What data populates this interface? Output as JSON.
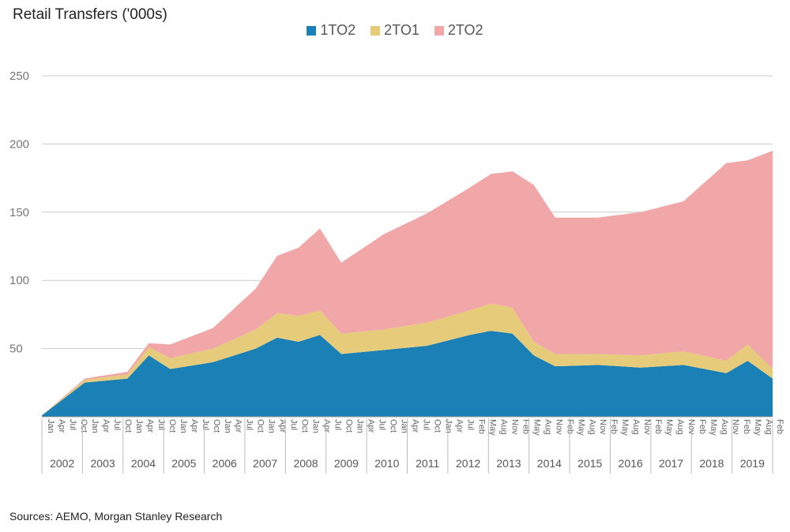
{
  "colors": {
    "s1": "#1a80b6",
    "s2": "#e6cb7a",
    "s3": "#f1a6a8",
    "grid": "#cccccc",
    "axis": "#999999"
  },
  "chart_data": {
    "type": "area",
    "stacked": true,
    "title": "Retail Transfers ('000s)",
    "source": "Sources: AEMO, Morgan Stanley Research",
    "ylim": [
      0,
      250
    ],
    "yticks": [
      "50",
      "100",
      "150",
      "200",
      "250"
    ],
    "legend_position": "top-center",
    "grid": true,
    "x_start": "2002-01",
    "x_end": "2019-02",
    "x_anchor_months": [
      "2002-01",
      "2003-01",
      "2004-01",
      "2004-07",
      "2005-01",
      "2006-01",
      "2007-01",
      "2007-07",
      "2008-01",
      "2008-07",
      "2009-01",
      "2010-01",
      "2011-01",
      "2012-01",
      "2012-07",
      "2013-01",
      "2013-07",
      "2014-01",
      "2015-01",
      "2016-01",
      "2017-01",
      "2018-01",
      "2018-07",
      "2019-02"
    ],
    "year_labels": [
      "2002",
      "2003",
      "2004",
      "2005",
      "2006",
      "2007",
      "2008",
      "2009",
      "2010",
      "2011",
      "2012",
      "2013",
      "2014",
      "2015",
      "2016",
      "2017",
      "2018",
      "2019"
    ],
    "month_labels": [
      "Jan",
      "Apr",
      "Jul",
      "Oct",
      "Jan",
      "Apr",
      "Jul",
      "Oct",
      "Jan",
      "Apr",
      "Jul",
      "Oct",
      "Jan",
      "Apr",
      "Jul",
      "Oct",
      "Jan",
      "Apr",
      "Jul",
      "Oct",
      "Jan",
      "Apr",
      "Jul",
      "Oct",
      "Jan",
      "Apr",
      "Jul",
      "Oct",
      "Jan",
      "Apr",
      "Jul",
      "Oct",
      "Jan",
      "Apr",
      "Jul",
      "Oct",
      "Jan",
      "Apr",
      "Jul",
      "Feb",
      "May",
      "Aug",
      "Nov",
      "Feb",
      "May",
      "Aug",
      "Nov",
      "Feb",
      "May",
      "Aug",
      "Nov",
      "Feb",
      "May",
      "Aug",
      "Nov",
      "Feb",
      "May",
      "Aug",
      "Nov",
      "Feb",
      "May",
      "Aug",
      "Nov",
      "Feb",
      "May",
      "Aug",
      "Feb"
    ],
    "series": [
      {
        "name": "1TO2",
        "values": [
          1,
          25,
          28,
          45,
          35,
          40,
          50,
          58,
          55,
          60,
          46,
          49,
          52,
          60,
          63,
          61,
          45,
          37,
          38,
          36,
          38,
          32,
          41,
          28
        ]
      },
      {
        "name": "2TO1",
        "values": [
          0,
          2,
          3,
          6,
          8,
          10,
          14,
          18,
          19,
          18,
          15,
          15,
          17,
          18,
          20,
          19,
          10,
          9,
          8,
          9,
          10,
          9,
          12,
          7
        ]
      },
      {
        "name": "2TO2",
        "values": [
          0,
          1,
          2,
          3,
          10,
          15,
          30,
          42,
          50,
          60,
          52,
          70,
          80,
          90,
          95,
          100,
          115,
          100,
          100,
          105,
          110,
          145,
          135,
          160
        ]
      }
    ]
  }
}
